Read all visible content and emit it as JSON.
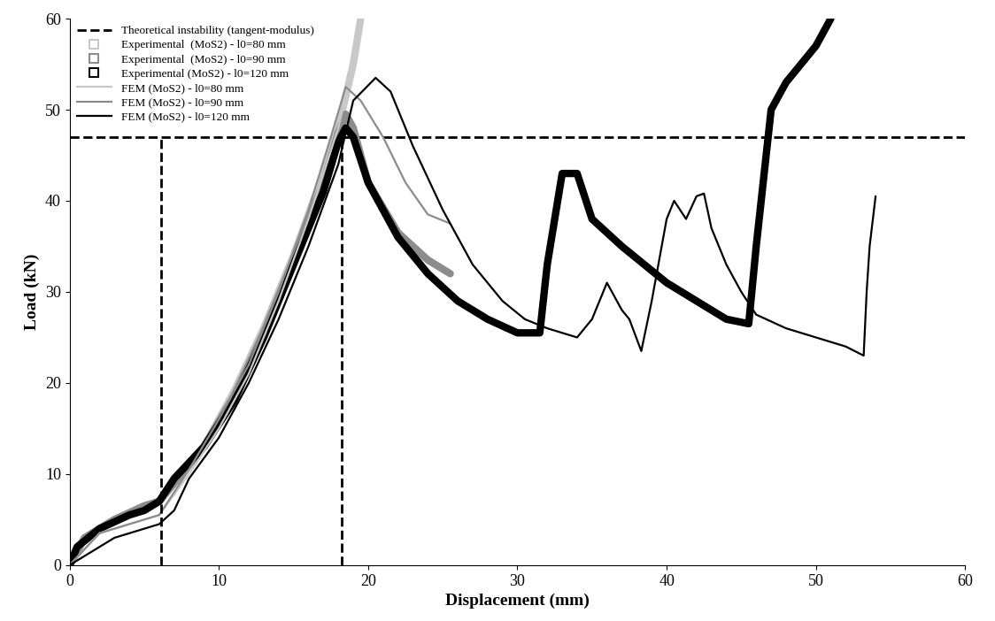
{
  "chart_data": {
    "type": "line",
    "xlabel": "Displacement (mm)",
    "ylabel": "Load (kN)",
    "xlim": [
      0,
      60
    ],
    "xticks": [
      0,
      10,
      20,
      30,
      40,
      50,
      60
    ],
    "ylim": [
      0,
      60
    ],
    "yticks": [
      0,
      10,
      20,
      30,
      40,
      50,
      60
    ],
    "grid": false,
    "legend": "upper left",
    "vertical_lines": {
      "x": [
        6.1,
        18.2
      ],
      "top": 47,
      "color": "#000000",
      "line_style": "dashed"
    },
    "series": [
      {
        "name": "Theoretical instability (tangent-modulus)",
        "color": "#000000",
        "line_style": "dashed",
        "x": [
          0,
          60
        ],
        "values": [
          47,
          47
        ]
      },
      {
        "name": "Experimental  (MoS2) - l0=80 mm",
        "color": "#c8c8c8",
        "line_style": "thick",
        "marker": "square",
        "x": [
          0,
          1,
          3,
          5,
          6,
          7,
          9,
          11,
          13,
          15,
          17,
          18,
          19,
          19.5
        ],
        "values": [
          0,
          3,
          5,
          6.5,
          7,
          9,
          13,
          19,
          26,
          34,
          43,
          48,
          55,
          60
        ]
      },
      {
        "name": "Experimental  (MoS2) - l0=90 mm",
        "color": "#8c8c8c",
        "line_style": "thick",
        "marker": "square",
        "x": [
          0,
          1,
          3,
          5,
          6,
          7,
          9,
          11,
          13,
          15,
          17,
          18,
          18.5,
          19,
          20,
          22,
          24,
          25.5
        ],
        "values": [
          0,
          3,
          5,
          6.5,
          7,
          9,
          13,
          18.5,
          25.5,
          33.5,
          42,
          47.5,
          49.5,
          48,
          42,
          36.5,
          33.5,
          32
        ]
      },
      {
        "name": "Experimental (MoS2) - l0=120 mm",
        "color": "#000000",
        "line_style": "thick",
        "marker": "square",
        "x": [
          0,
          0.5,
          2,
          4,
          5,
          6,
          7,
          9,
          11,
          13,
          15,
          17,
          18,
          18.5,
          19,
          20,
          22,
          24,
          26,
          28,
          30,
          31.5,
          32,
          33,
          34,
          35,
          37,
          40,
          42,
          44,
          45.5,
          46,
          47,
          48,
          50,
          51
        ],
        "values": [
          0,
          2,
          4,
          5.5,
          6,
          7,
          9.5,
          13,
          18,
          25,
          33,
          41,
          46.5,
          48,
          47,
          42,
          36,
          32,
          29,
          27,
          25.5,
          25.5,
          33,
          43,
          43,
          38,
          35,
          31,
          29,
          27,
          26.5,
          35,
          50,
          53,
          57,
          60
        ]
      },
      {
        "name": "FEM (MoS2) - l0=80 mm",
        "color": "#c8c8c8",
        "line_style": "solid",
        "x": [
          0,
          2,
          5,
          6,
          8,
          10,
          12,
          14,
          16,
          18,
          19,
          19.5
        ],
        "values": [
          0,
          3.5,
          5,
          5.5,
          10,
          15,
          21,
          29,
          38,
          48,
          55,
          59
        ]
      },
      {
        "name": "FEM (MoS2) - l0=90 mm",
        "color": "#8c8c8c",
        "line_style": "solid",
        "x": [
          0,
          2,
          5,
          6,
          8,
          10,
          12,
          14,
          16,
          17.5,
          18.5,
          19.5,
          21,
          22.5,
          24,
          25.5
        ],
        "values": [
          0,
          3.5,
          5,
          5.5,
          10.5,
          16,
          22,
          30,
          39,
          47,
          52.5,
          51,
          47,
          42,
          38.5,
          37.5
        ]
      },
      {
        "name": "FEM (MoS2) - l0=120 mm",
        "color": "#000000",
        "line_style": "solid",
        "x": [
          0,
          1,
          3,
          6,
          7,
          8,
          10,
          12,
          14,
          16,
          18,
          19,
          20.5,
          21.5,
          23,
          25,
          27,
          29,
          30.5,
          32,
          34,
          35,
          36,
          37,
          37.5,
          38.3,
          39,
          40,
          40.5,
          41.3,
          42,
          42.5,
          43,
          44,
          45,
          46,
          48,
          50,
          52,
          53.2,
          53.4,
          53.6,
          54
        ],
        "values": [
          0,
          1,
          3,
          4.5,
          6,
          9.5,
          14,
          20,
          27,
          35,
          44,
          51,
          53.5,
          52,
          46,
          39,
          33,
          29,
          27,
          26,
          25,
          27,
          31,
          28,
          27,
          23.5,
          29,
          38,
          40,
          38,
          40.5,
          40.8,
          37,
          33,
          30,
          27.5,
          26,
          25,
          24,
          23,
          30,
          35,
          40.5
        ]
      }
    ]
  }
}
